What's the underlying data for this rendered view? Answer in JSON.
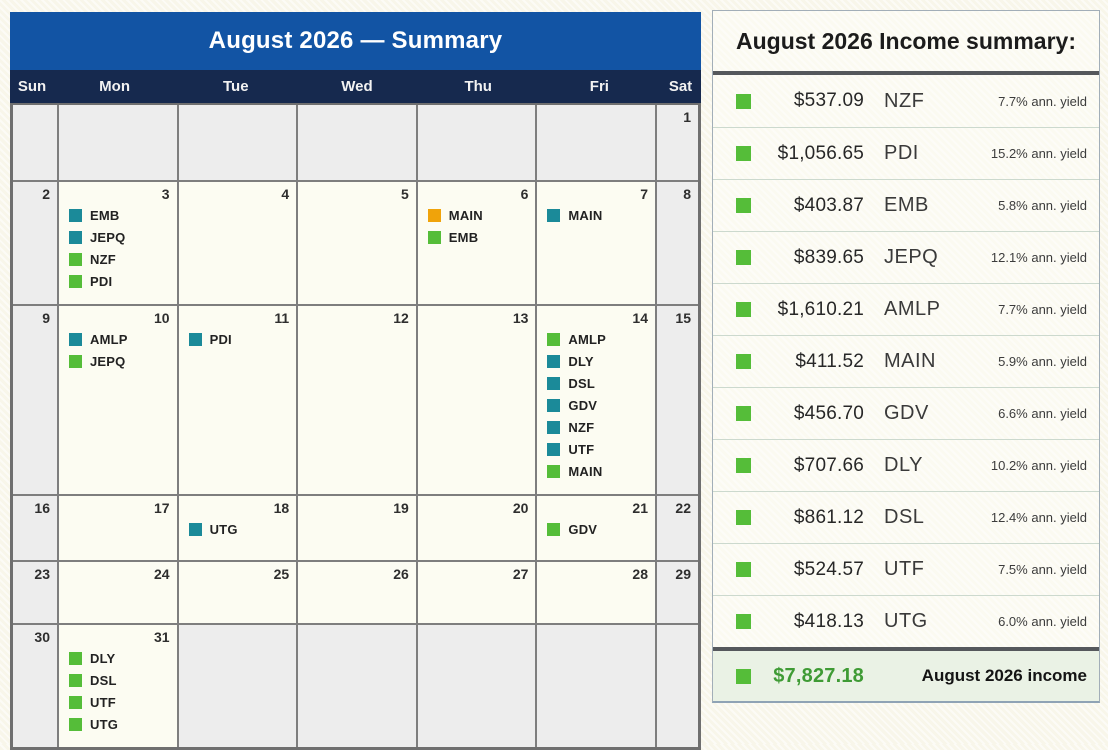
{
  "colors": {
    "events": {
      "teal": "#1b8a99",
      "green": "#55bd39",
      "orange": "#f0a30a"
    },
    "header_blue": "#1254a4",
    "weekday_navy": "#16294e",
    "total_green": "#3f9b35"
  },
  "calendar": {
    "title": "August 2026 — Summary",
    "weekdays": [
      "Sun",
      "Mon",
      "Tue",
      "Wed",
      "Thu",
      "Fri",
      "Sat"
    ],
    "weeks": [
      [
        {
          "day": "",
          "muted": true,
          "events": []
        },
        {
          "day": "",
          "muted": true,
          "events": []
        },
        {
          "day": "",
          "muted": true,
          "events": []
        },
        {
          "day": "",
          "muted": true,
          "events": []
        },
        {
          "day": "",
          "muted": true,
          "events": []
        },
        {
          "day": "",
          "muted": true,
          "events": []
        },
        {
          "day": "1",
          "muted": true,
          "events": []
        }
      ],
      [
        {
          "day": "2",
          "muted": true,
          "events": []
        },
        {
          "day": "3",
          "muted": false,
          "events": [
            {
              "ticker": "EMB",
              "color": "teal"
            },
            {
              "ticker": "JEPQ",
              "color": "teal"
            },
            {
              "ticker": "NZF",
              "color": "green"
            },
            {
              "ticker": "PDI",
              "color": "green"
            }
          ]
        },
        {
          "day": "4",
          "muted": false,
          "events": []
        },
        {
          "day": "5",
          "muted": false,
          "events": []
        },
        {
          "day": "6",
          "muted": false,
          "events": [
            {
              "ticker": "MAIN",
              "color": "orange"
            },
            {
              "ticker": "EMB",
              "color": "green"
            }
          ]
        },
        {
          "day": "7",
          "muted": false,
          "events": [
            {
              "ticker": "MAIN",
              "color": "teal"
            }
          ]
        },
        {
          "day": "8",
          "muted": true,
          "events": []
        }
      ],
      [
        {
          "day": "9",
          "muted": true,
          "events": []
        },
        {
          "day": "10",
          "muted": false,
          "events": [
            {
              "ticker": "AMLP",
              "color": "teal"
            },
            {
              "ticker": "JEPQ",
              "color": "green"
            }
          ]
        },
        {
          "day": "11",
          "muted": false,
          "events": [
            {
              "ticker": "PDI",
              "color": "teal"
            }
          ]
        },
        {
          "day": "12",
          "muted": false,
          "events": []
        },
        {
          "day": "13",
          "muted": false,
          "events": []
        },
        {
          "day": "14",
          "muted": false,
          "events": [
            {
              "ticker": "AMLP",
              "color": "green"
            },
            {
              "ticker": "DLY",
              "color": "teal"
            },
            {
              "ticker": "DSL",
              "color": "teal"
            },
            {
              "ticker": "GDV",
              "color": "teal"
            },
            {
              "ticker": "NZF",
              "color": "teal"
            },
            {
              "ticker": "UTF",
              "color": "teal"
            },
            {
              "ticker": "MAIN",
              "color": "green"
            }
          ]
        },
        {
          "day": "15",
          "muted": true,
          "events": []
        }
      ],
      [
        {
          "day": "16",
          "muted": true,
          "events": []
        },
        {
          "day": "17",
          "muted": false,
          "events": []
        },
        {
          "day": "18",
          "muted": false,
          "events": [
            {
              "ticker": "UTG",
              "color": "teal"
            }
          ]
        },
        {
          "day": "19",
          "muted": false,
          "events": []
        },
        {
          "day": "20",
          "muted": false,
          "events": []
        },
        {
          "day": "21",
          "muted": false,
          "events": [
            {
              "ticker": "GDV",
              "color": "green"
            }
          ]
        },
        {
          "day": "22",
          "muted": true,
          "events": []
        }
      ],
      [
        {
          "day": "23",
          "muted": true,
          "events": []
        },
        {
          "day": "24",
          "muted": false,
          "events": []
        },
        {
          "day": "25",
          "muted": false,
          "events": []
        },
        {
          "day": "26",
          "muted": false,
          "events": []
        },
        {
          "day": "27",
          "muted": false,
          "events": []
        },
        {
          "day": "28",
          "muted": false,
          "events": []
        },
        {
          "day": "29",
          "muted": true,
          "events": []
        }
      ],
      [
        {
          "day": "30",
          "muted": true,
          "events": []
        },
        {
          "day": "31",
          "muted": false,
          "events": [
            {
              "ticker": "DLY",
              "color": "green"
            },
            {
              "ticker": "DSL",
              "color": "green"
            },
            {
              "ticker": "UTF",
              "color": "green"
            },
            {
              "ticker": "UTG",
              "color": "green"
            }
          ]
        },
        {
          "day": "",
          "muted": true,
          "events": []
        },
        {
          "day": "",
          "muted": true,
          "events": []
        },
        {
          "day": "",
          "muted": true,
          "events": []
        },
        {
          "day": "",
          "muted": true,
          "events": []
        },
        {
          "day": "",
          "muted": true,
          "events": []
        }
      ]
    ]
  },
  "summary": {
    "title": "August 2026 Income summary:",
    "rows": [
      {
        "amount": "$537.09",
        "ticker": "NZF",
        "yield": "7.7% ann. yield"
      },
      {
        "amount": "$1,056.65",
        "ticker": "PDI",
        "yield": "15.2% ann. yield"
      },
      {
        "amount": "$403.87",
        "ticker": "EMB",
        "yield": "5.8% ann. yield"
      },
      {
        "amount": "$839.65",
        "ticker": "JEPQ",
        "yield": "12.1% ann. yield"
      },
      {
        "amount": "$1,610.21",
        "ticker": "AMLP",
        "yield": "7.7% ann. yield"
      },
      {
        "amount": "$411.52",
        "ticker": "MAIN",
        "yield": "5.9% ann. yield"
      },
      {
        "amount": "$456.70",
        "ticker": "GDV",
        "yield": "6.6% ann. yield"
      },
      {
        "amount": "$707.66",
        "ticker": "DLY",
        "yield": "10.2% ann. yield"
      },
      {
        "amount": "$861.12",
        "ticker": "DSL",
        "yield": "12.4% ann. yield"
      },
      {
        "amount": "$524.57",
        "ticker": "UTF",
        "yield": "7.5% ann. yield"
      },
      {
        "amount": "$418.13",
        "ticker": "UTG",
        "yield": "6.0% ann. yield"
      }
    ],
    "total": {
      "amount": "$7,827.18",
      "label": "August 2026 income"
    }
  }
}
